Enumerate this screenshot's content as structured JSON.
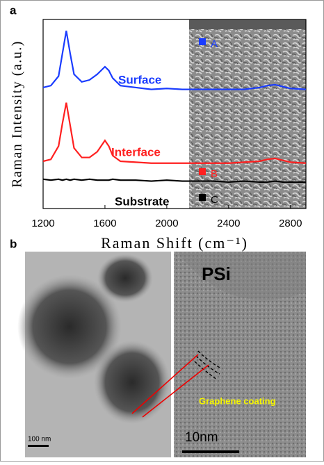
{
  "chart_data": {
    "type": "line",
    "xlabel": "Raman Shift (cm⁻¹)",
    "ylabel": "Raman Intensity (a.u.)",
    "x": [
      1200,
      1250,
      1300,
      1325,
      1350,
      1375,
      1400,
      1450,
      1500,
      1550,
      1600,
      1625,
      1650,
      1700,
      1800,
      1900,
      2000,
      2100,
      2200,
      2300,
      2400,
      2500,
      2600,
      2650,
      2700,
      2750,
      2800,
      2900
    ],
    "series": [
      {
        "name": "Surface",
        "color": "#1a3cff",
        "values": [
          64,
          65,
          70,
          82,
          94,
          82,
          71,
          67,
          68,
          71,
          75,
          73,
          69,
          65,
          64,
          63,
          63.5,
          63,
          63,
          63,
          63,
          63,
          64,
          65,
          65.5,
          64.5,
          63.5,
          63
        ]
      },
      {
        "name": "Interface",
        "color": "#ff2020",
        "values": [
          25,
          26,
          33,
          45,
          56,
          44,
          32,
          27,
          27,
          30,
          36,
          33,
          28,
          25,
          24.5,
          24,
          24,
          24,
          24,
          24,
          24,
          24.5,
          25,
          26,
          26.5,
          25.5,
          24.5,
          24
        ]
      },
      {
        "name": "Substrate",
        "color": "#000000",
        "values": [
          15.5,
          15,
          15.5,
          15,
          15.5,
          15,
          15.5,
          15,
          15.5,
          15,
          15,
          15,
          15.5,
          15,
          15,
          14.5,
          15,
          14.5,
          14.5,
          14.5,
          14,
          14.5,
          14,
          14,
          14.5,
          14,
          14,
          14
        ]
      }
    ],
    "xlim": [
      1200,
      2900
    ],
    "xticks": [
      1200,
      1600,
      2000,
      2400,
      2800
    ],
    "ylim": [
      0,
      100
    ]
  },
  "panel_labels": [
    "a",
    "b"
  ],
  "inset_markers": [
    {
      "label": "A",
      "color": "#1a3cff"
    },
    {
      "label": "B",
      "color": "#ff2020"
    },
    {
      "label": "C",
      "color": "#000000"
    }
  ],
  "tem": {
    "title": "PSi",
    "annotation": "Graphene coating",
    "scale_left": "100 nm",
    "scale_right": "10nm"
  }
}
